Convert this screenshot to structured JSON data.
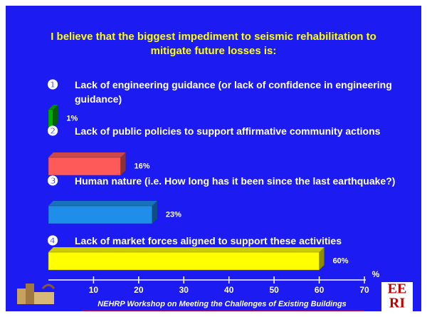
{
  "chart_data": {
    "type": "bar",
    "orientation": "horizontal",
    "title": "I believe that the biggest impediment to seismic rehabilitation to mitigate future losses is:",
    "markers": [
      "❶",
      "❷",
      "❸",
      "❹"
    ],
    "categories": [
      "Lack of engineering guidance (or lack of confidence in engineering guidance)",
      "Lack of public policies to support affirmative community actions",
      "Human nature (i.e. How long has it been since the last earthquake?)",
      "Lack of market forces aligned to support these activities"
    ],
    "values": [
      1,
      16,
      23,
      60
    ],
    "value_labels": [
      "1%",
      "16%",
      "23%",
      "60%"
    ],
    "colors": [
      "#00b000",
      "#ff5a5a",
      "#1e8ee8",
      "#ffff00"
    ],
    "xlim": [
      0,
      70
    ],
    "xticks": [
      10,
      20,
      30,
      40,
      50,
      60,
      70
    ],
    "xlabel": "%",
    "footer": "NEHRP Workshop on Meeting the Challenges of Existing Buildings",
    "logo_text": [
      "EE",
      "RI"
    ]
  }
}
